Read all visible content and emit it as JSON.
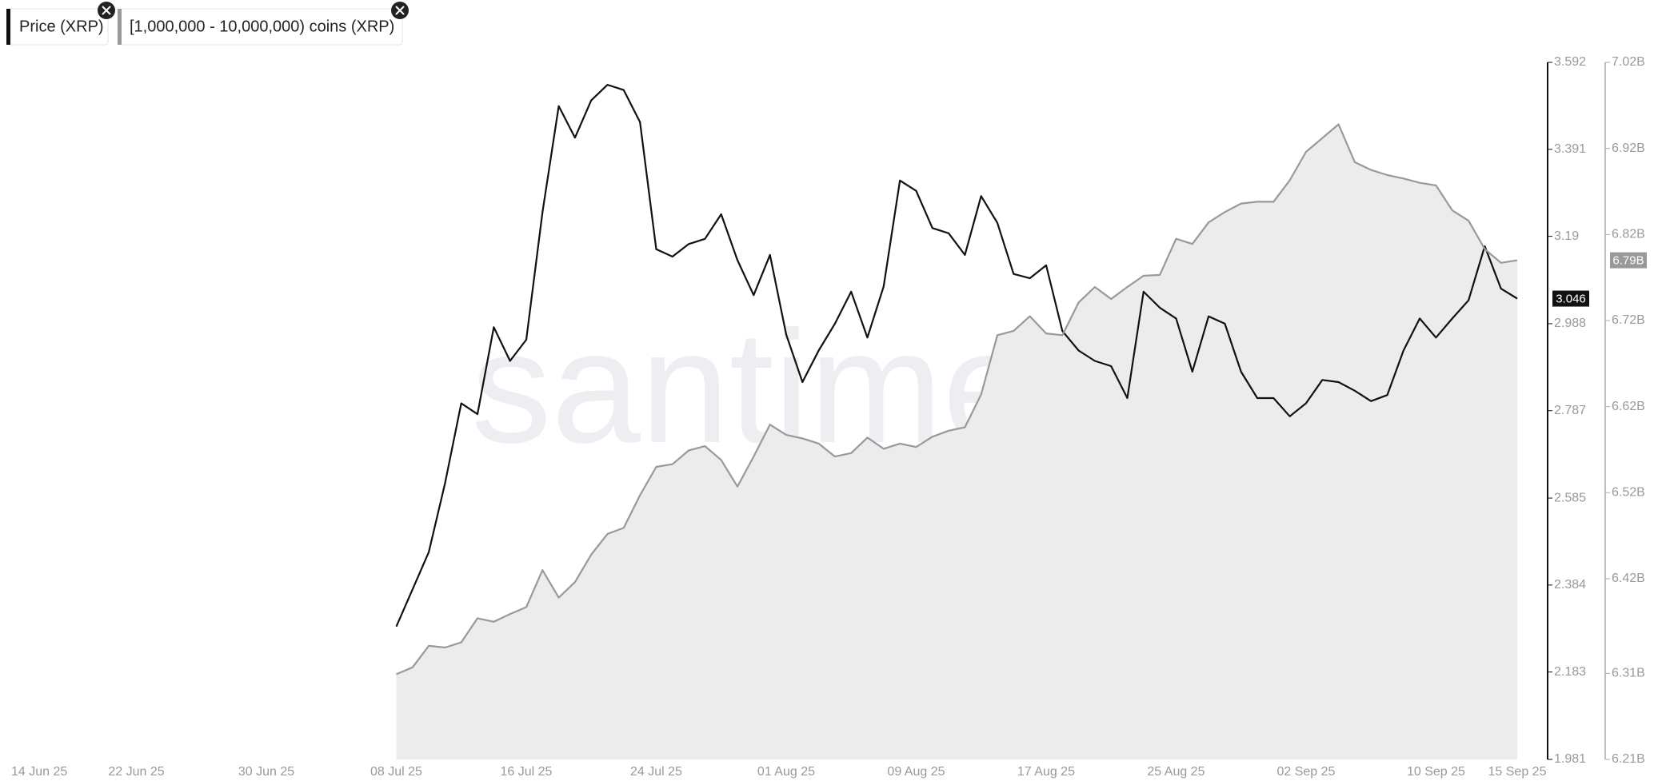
{
  "chart_data": {
    "type": "line",
    "watermark": "santiment",
    "x": [
      "2025-07-08",
      "2025-07-09",
      "2025-07-10",
      "2025-07-11",
      "2025-07-12",
      "2025-07-13",
      "2025-07-14",
      "2025-07-15",
      "2025-07-16",
      "2025-07-17",
      "2025-07-18",
      "2025-07-19",
      "2025-07-20",
      "2025-07-21",
      "2025-07-22",
      "2025-07-23",
      "2025-07-24",
      "2025-07-25",
      "2025-07-26",
      "2025-07-27",
      "2025-07-28",
      "2025-07-29",
      "2025-07-30",
      "2025-07-31",
      "2025-08-01",
      "2025-08-02",
      "2025-08-03",
      "2025-08-04",
      "2025-08-05",
      "2025-08-06",
      "2025-08-07",
      "2025-08-08",
      "2025-08-09",
      "2025-08-10",
      "2025-08-11",
      "2025-08-12",
      "2025-08-13",
      "2025-08-14",
      "2025-08-15",
      "2025-08-16",
      "2025-08-17",
      "2025-08-18",
      "2025-08-19",
      "2025-08-20",
      "2025-08-21",
      "2025-08-22",
      "2025-08-23",
      "2025-08-24",
      "2025-08-25",
      "2025-08-26",
      "2025-08-27",
      "2025-08-28",
      "2025-08-29",
      "2025-08-30",
      "2025-08-31",
      "2025-09-01",
      "2025-09-02",
      "2025-09-03",
      "2025-09-04",
      "2025-09-05",
      "2025-09-06",
      "2025-09-07",
      "2025-09-08",
      "2025-09-09",
      "2025-09-10",
      "2025-09-11",
      "2025-09-12",
      "2025-09-13",
      "2025-09-14",
      "2025-09-15"
    ],
    "series": [
      {
        "name": "Price (XRP)",
        "color": "#111111",
        "values": [
          2.288,
          2.374,
          2.46,
          2.619,
          2.804,
          2.779,
          2.98,
          2.902,
          2.951,
          3.246,
          3.491,
          3.418,
          3.504,
          3.54,
          3.528,
          3.454,
          3.16,
          3.143,
          3.172,
          3.184,
          3.241,
          3.135,
          3.054,
          3.147,
          2.963,
          2.853,
          2.926,
          2.988,
          3.062,
          2.956,
          3.074,
          3.319,
          3.295,
          3.209,
          3.197,
          3.147,
          3.283,
          3.221,
          3.103,
          3.093,
          3.123,
          2.971,
          2.926,
          2.902,
          2.89,
          2.816,
          3.062,
          3.025,
          3.0,
          2.877,
          3.005,
          2.988,
          2.877,
          2.816,
          2.816,
          2.774,
          2.804,
          2.858,
          2.853,
          2.833,
          2.809,
          2.823,
          2.926,
          3.0,
          2.956,
          3.0,
          3.042,
          3.167,
          3.069,
          3.046
        ]
      },
      {
        "name": "[1,000,000 - 10,000,000) coins (XRP)",
        "color": "#999999",
        "fill": "#ececec",
        "axis": "y2",
        "values": [
          6.309,
          6.317,
          6.342,
          6.34,
          6.346,
          6.374,
          6.37,
          6.379,
          6.387,
          6.43,
          6.398,
          6.416,
          6.448,
          6.472,
          6.479,
          6.517,
          6.55,
          6.553,
          6.569,
          6.574,
          6.558,
          6.527,
          6.562,
          6.599,
          6.587,
          6.583,
          6.577,
          6.562,
          6.566,
          6.584,
          6.571,
          6.577,
          6.573,
          6.585,
          6.592,
          6.596,
          6.634,
          6.703,
          6.708,
          6.725,
          6.705,
          6.703,
          6.741,
          6.759,
          6.745,
          6.759,
          6.772,
          6.773,
          6.815,
          6.809,
          6.834,
          6.846,
          6.856,
          6.858,
          6.858,
          6.883,
          6.916,
          6.932,
          6.948,
          6.904,
          6.895,
          6.889,
          6.885,
          6.88,
          6.877,
          6.848,
          6.836,
          6.803,
          6.787,
          6.79
        ]
      }
    ],
    "xlim": [
      "2025-06-14",
      "2025-09-15"
    ],
    "xticks": [
      {
        "value": "2025-06-14",
        "label": "14 Jun 25"
      },
      {
        "value": "2025-06-22",
        "label": "22 Jun 25"
      },
      {
        "value": "2025-06-30",
        "label": "30 Jun 25"
      },
      {
        "value": "2025-07-08",
        "label": "08 Jul 25"
      },
      {
        "value": "2025-07-16",
        "label": "16 Jul 25"
      },
      {
        "value": "2025-07-24",
        "label": "24 Jul 25"
      },
      {
        "value": "2025-08-01",
        "label": "01 Aug 25"
      },
      {
        "value": "2025-08-09",
        "label": "09 Aug 25"
      },
      {
        "value": "2025-08-17",
        "label": "17 Aug 25"
      },
      {
        "value": "2025-08-25",
        "label": "25 Aug 25"
      },
      {
        "value": "2025-09-02",
        "label": "02 Sep 25"
      },
      {
        "value": "2025-09-10",
        "label": "10 Sep 25"
      },
      {
        "value": "2025-09-15",
        "label": "15 Sep 25"
      }
    ],
    "ylim": [
      1.981,
      3.592
    ],
    "yticks": [
      1.981,
      2.183,
      2.384,
      2.585,
      2.787,
      2.988,
      3.19,
      3.391,
      3.592
    ],
    "y2lim": [
      6.21,
      7.02
    ],
    "y2ticks": [
      {
        "value": 6.21,
        "label": "6.21B"
      },
      {
        "value": 6.31,
        "label": "6.31B"
      },
      {
        "value": 6.42,
        "label": "6.42B"
      },
      {
        "value": 6.52,
        "label": "6.52B"
      },
      {
        "value": 6.62,
        "label": "6.62B"
      },
      {
        "value": 6.72,
        "label": "6.72B"
      },
      {
        "value": 6.82,
        "label": "6.82B"
      },
      {
        "value": 6.92,
        "label": "6.92B"
      },
      {
        "value": 7.02,
        "label": "7.02B"
      }
    ],
    "last_value_labels": [
      {
        "value": 3.046,
        "label": "3.046"
      },
      {
        "value": 6.79,
        "label": "6.79B"
      }
    ],
    "grid": false
  }
}
